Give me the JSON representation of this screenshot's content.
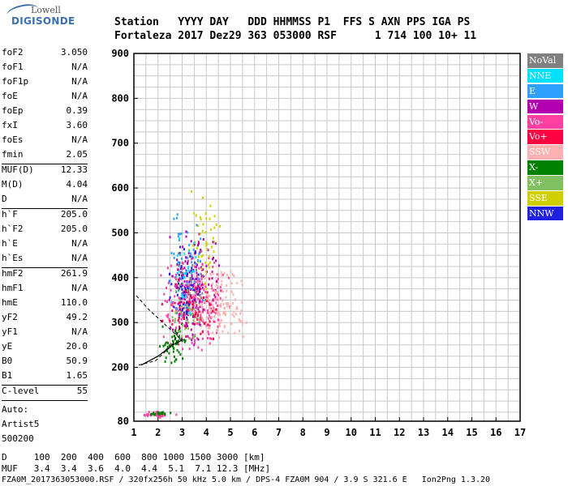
{
  "logo": {
    "top": "Lowell",
    "bottom": "DIGISONDE"
  },
  "header": {
    "line1": "Station   YYYY DAY   DDD HHMMSS P1  FFS S AXN PPS IGA PS",
    "line2": "Fortaleza 2017 Dez29 363 053000 RSF      1 714 100 10+ 11"
  },
  "params": [
    {
      "k": "foF2",
      "v": "3.050"
    },
    {
      "k": "foF1",
      "v": "N/A"
    },
    {
      "k": "foF1p",
      "v": "N/A"
    },
    {
      "k": "foE",
      "v": "N/A"
    },
    {
      "k": "foEp",
      "v": "0.39"
    },
    {
      "k": "fxI",
      "v": "3.60"
    },
    {
      "k": "foEs",
      "v": "N/A"
    },
    {
      "k": "fmin",
      "v": "2.05"
    },
    {
      "k": "MUF(D)",
      "v": "12.33"
    },
    {
      "k": "M(D)",
      "v": "4.04"
    },
    {
      "k": "D",
      "v": "N/A"
    },
    {
      "k": "h`F",
      "v": "205.0"
    },
    {
      "k": "h`F2",
      "v": "205.0"
    },
    {
      "k": "h`E",
      "v": "N/A"
    },
    {
      "k": "h`Es",
      "v": "N/A"
    },
    {
      "k": "hmF2",
      "v": "261.9"
    },
    {
      "k": "hmF1",
      "v": "N/A"
    },
    {
      "k": "hmE",
      "v": "110.0"
    },
    {
      "k": "yF2",
      "v": "49.2"
    },
    {
      "k": "yF1",
      "v": "N/A"
    },
    {
      "k": "yE",
      "v": "20.0"
    },
    {
      "k": "B0",
      "v": "50.9"
    },
    {
      "k": "B1",
      "v": "1.65"
    },
    {
      "k": "C-level",
      "v": "55"
    }
  ],
  "auto": [
    "Auto:",
    "Artist5",
    "500200"
  ],
  "footer": {
    "line1": "D     100  200  400  600  800 1000 1500 3000 [km]",
    "line2": "MUF   3.4  3.4  3.6  4.0  4.4  5.1  7.1 12.3 [MHz]",
    "line3": "FZA0M_2017363053000.RSF / 320fx256h 50 kHz 5.0 km / DPS-4 FZA0M 904 / 3.9 S 321.6 E   Ion2Png 1.3.20"
  },
  "legend": [
    {
      "label": "NoVal",
      "color": "#808080"
    },
    {
      "label": "NNE",
      "color": "#00e0ff"
    },
    {
      "label": "E",
      "color": "#2ea0ff"
    },
    {
      "label": "W",
      "color": "#b000b0"
    },
    {
      "label": "Vo-",
      "color": "#ff40a0"
    },
    {
      "label": "Vo+",
      "color": "#ff0040"
    },
    {
      "label": "SSW",
      "color": "#ffb0b0"
    },
    {
      "label": "X-",
      "color": "#008000"
    },
    {
      "label": "X+",
      "color": "#80c060"
    },
    {
      "label": "SSE",
      "color": "#d0d000"
    },
    {
      "label": "NNW",
      "color": "#2020e0"
    }
  ],
  "chart_data": {
    "type": "scatter",
    "xlabel": "",
    "ylabel": "",
    "xlim": [
      1,
      17
    ],
    "ylim": [
      80,
      900
    ],
    "x_ticks": [
      1,
      2,
      3,
      4,
      5,
      6,
      7,
      8,
      9,
      10,
      11,
      12,
      13,
      14,
      15,
      16,
      17
    ],
    "y_ticks": [
      80,
      200,
      300,
      400,
      500,
      600,
      700,
      800,
      900
    ],
    "grid": true,
    "clusters": [
      {
        "series": "Vo-",
        "x_range": [
          2.0,
          5.0
        ],
        "y_range": [
          230,
          460
        ],
        "count": 260
      },
      {
        "series": "W",
        "x_range": [
          2.2,
          4.6
        ],
        "y_range": [
          250,
          520
        ],
        "count": 150
      },
      {
        "series": "SSW",
        "x_range": [
          3.0,
          5.8
        ],
        "y_range": [
          260,
          430
        ],
        "count": 150
      },
      {
        "series": "SSE",
        "x_range": [
          3.2,
          4.6
        ],
        "y_range": [
          360,
          600
        ],
        "count": 45
      },
      {
        "series": "NNW",
        "x_range": [
          2.3,
          3.8
        ],
        "y_range": [
          260,
          480
        ],
        "count": 70
      },
      {
        "series": "Vo+",
        "x_range": [
          2.0,
          4.5
        ],
        "y_range": [
          240,
          420
        ],
        "count": 60
      },
      {
        "series": "X-",
        "x_range": [
          2.0,
          3.2
        ],
        "y_range": [
          205,
          300
        ],
        "count": 50
      },
      {
        "series": "X+",
        "x_range": [
          2.4,
          3.8
        ],
        "y_range": [
          240,
          400
        ],
        "count": 40
      },
      {
        "series": "E",
        "x_range": [
          2.3,
          4.0
        ],
        "y_range": [
          300,
          560
        ],
        "count": 45
      },
      {
        "series": "NNE",
        "x_range": [
          2.4,
          3.8
        ],
        "y_range": [
          300,
          500
        ],
        "count": 25
      },
      {
        "series": "NoVal",
        "x_range": [
          2.5,
          4.2
        ],
        "y_range": [
          300,
          480
        ],
        "count": 20
      },
      {
        "series": "Vo-",
        "x_range": [
          1.2,
          2.8
        ],
        "y_range": [
          90,
          105
        ],
        "count": 30
      },
      {
        "series": "X-",
        "x_range": [
          1.5,
          2.6
        ],
        "y_range": [
          95,
          105
        ],
        "count": 20
      }
    ],
    "profile_curve": {
      "x": [
        1.3,
        2.0,
        2.6,
        3.05
      ],
      "y": [
        205,
        225,
        250,
        262
      ]
    },
    "dashed_curves": [
      {
        "x": [
          1.1,
          1.6,
          2.2,
          2.8,
          3.05
        ],
        "y": [
          360,
          330,
          300,
          270,
          255
        ]
      },
      {
        "x": [
          1.2,
          1.9,
          2.6,
          3.0
        ],
        "y": [
          205,
          215,
          250,
          300
        ]
      }
    ]
  }
}
